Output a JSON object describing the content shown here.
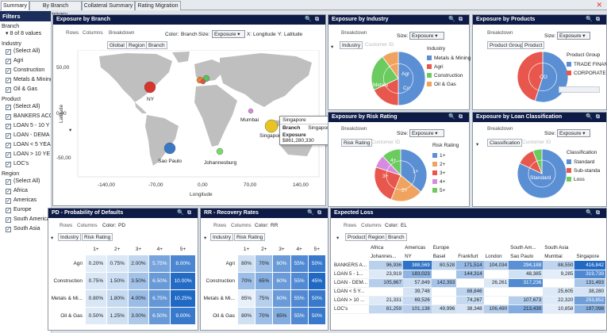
{
  "tabs": [
    "Summary",
    "By Branch Summary",
    "Collateral Summary",
    "Rating Migration"
  ],
  "filters": {
    "title": "Filters",
    "branch_label": "Branch",
    "branch_value": "8 of 8 values",
    "industry_label": "Industry",
    "industry_items": [
      "(Select All)",
      "Agri",
      "Construction",
      "Metals & Mining",
      "Oil & Gas"
    ],
    "product_label": "Product",
    "product_items": [
      "(Select All)",
      "BANKERS ACC",
      "LOAN  5 - 10 Y",
      "LOAN - DEMA",
      "LOAN < 5 YEA",
      "LOAN > 10 YE",
      "LOC's"
    ],
    "region_label": "Region",
    "region_items": [
      "(Select All)",
      "Africa",
      "Americas",
      "Europe",
      "South America",
      "South Asia"
    ]
  },
  "branch": {
    "title": "Exposure by Branch",
    "rows": "Rows",
    "columns": "Columns",
    "breakdown": "Breakdown",
    "color_label": "Color:",
    "color_value": "Branch",
    "size_label": "Size:",
    "size_value": "Exposure",
    "x_label": "X:",
    "x_value": "Longitude",
    "y_label": "Y:",
    "y_value": "Latitude",
    "chips": [
      "Global",
      "Region",
      "Branch"
    ],
    "y_ticks": [
      "50,00",
      "0,00",
      "-50,00"
    ],
    "x_ticks": [
      "-140,00",
      "-70,00",
      "0,00",
      "70,00",
      "140,00"
    ],
    "x_axis": "Longitude",
    "y_axis": "Latitude",
    "cities": [
      "NY",
      "Sao Paulo",
      "Johannesburg",
      "Mumbai",
      "Singapore"
    ],
    "tooltip": {
      "title": "Singapore",
      "branch_label": "Branch",
      "branch_value": "Singapore",
      "exposure_label": "Exposure",
      "exposure_value": "$861,280,330"
    }
  },
  "industry": {
    "title": "Exposure by Industry",
    "breakdown": "Breakdown",
    "size_label": "Size:",
    "size_value": "Exposure",
    "chips": [
      "Industry"
    ],
    "ghost": "Customer ID",
    "legend_title": "Industry",
    "legend": [
      {
        "name": "Metals & Mining",
        "color": "#5b8fd4"
      },
      {
        "name": "Agri",
        "color": "#e8574d"
      },
      {
        "name": "Construction",
        "color": "#6bcb5f"
      },
      {
        "name": "Oil & Gas",
        "color": "#f0a35e"
      }
    ],
    "slice_labels": [
      "Metals",
      "Agr",
      "Co"
    ]
  },
  "products": {
    "title": "Exposure by Products",
    "breakdown": "Breakdown",
    "size_label": "Size:",
    "size_value": "Exposure",
    "chips": [
      "Product Group",
      "Product"
    ],
    "legend_title": "Product Group",
    "legend": [
      {
        "name": "TRADE FINAN",
        "color": "#5b8fd4"
      },
      {
        "name": "CORPORATE L",
        "color": "#e8574d"
      }
    ],
    "slice_labels": [
      "CO"
    ]
  },
  "risk": {
    "title": "Exposure by Risk Rating",
    "breakdown": "Breakdown",
    "size_label": "Size:",
    "size_value": "Exposure",
    "chips": [
      "Risk Rating"
    ],
    "ghost": "Customer ID",
    "legend_title": "Risk Rating",
    "legend": [
      {
        "name": "1+",
        "color": "#5b8fd4"
      },
      {
        "name": "2+",
        "color": "#f0a35e"
      },
      {
        "name": "3+",
        "color": "#e8574d"
      },
      {
        "name": "4+",
        "color": "#d78be0"
      },
      {
        "name": "5+",
        "color": "#6bcb5f"
      }
    ],
    "slice_labels": [
      "1+",
      "2+",
      "3+",
      "4+"
    ]
  },
  "loan": {
    "title": "Exposure by Loan Classification",
    "breakdown": "Breakdown",
    "size_label": "Size:",
    "size_value": "Exposure",
    "chips": [
      "Classification"
    ],
    "ghost": "Customer ID",
    "legend_title": "Classification",
    "legend": [
      {
        "name": "Standard",
        "color": "#5b8fd4"
      },
      {
        "name": "Sub-standa",
        "color": "#e8574d"
      },
      {
        "name": "Loss",
        "color": "#6bcb5f"
      }
    ],
    "slice_labels": [
      "Standard"
    ]
  },
  "pd": {
    "title": "PD - Probability of Defaults",
    "rows": "Rows",
    "columns": "Columns",
    "color_label": "Color:",
    "color_value": "PD",
    "chips": [
      "Industry",
      "Risk Rating"
    ],
    "cols": [
      "1+",
      "2+",
      "3+",
      "4+",
      "5+"
    ],
    "rows_data": [
      {
        "label": "Agri",
        "cells": [
          "0.20%",
          "0.75%",
          "2.00%",
          "5.75%",
          "8.00%"
        ]
      },
      {
        "label": "Construction",
        "cells": [
          "0.75%",
          "1.50%",
          "3.50%",
          "6.50%",
          "10.00%"
        ]
      },
      {
        "label": "Metals & Mi...",
        "cells": [
          "0.80%",
          "1.80%",
          "4.00%",
          "6.75%",
          "10.25%"
        ]
      },
      {
        "label": "Oil & Gas",
        "cells": [
          "0.50%",
          "1.25%",
          "3.00%",
          "6.50%",
          "9.00%"
        ]
      }
    ]
  },
  "rr": {
    "title": "RR - Recovery Rates",
    "rows": "Rows",
    "columns": "Columns",
    "color_label": "Color:",
    "color_value": "RR",
    "chips": [
      "Industry",
      "Risk Rating"
    ],
    "cols": [
      "1+",
      "2+",
      "3+",
      "4+",
      "5+"
    ],
    "rows_data": [
      {
        "label": "Agri",
        "cells": [
          "80%",
          "70%",
          "60%",
          "55%",
          "50%"
        ]
      },
      {
        "label": "Construction",
        "cells": [
          "70%",
          "65%",
          "60%",
          "55%",
          "45%"
        ]
      },
      {
        "label": "Metals & Mi...",
        "cells": [
          "85%",
          "75%",
          "60%",
          "55%",
          "50%"
        ]
      },
      {
        "label": "Oil & Gas",
        "cells": [
          "80%",
          "70%",
          "65%",
          "55%",
          "50%"
        ]
      }
    ]
  },
  "el": {
    "title": "Expected Loss",
    "rows": "Rows",
    "columns": "Columns",
    "color_label": "Color:",
    "color_value": "EL",
    "chips": [
      "Product",
      "Region",
      "Branch"
    ],
    "regions": [
      "Africa",
      "Americas",
      "Europe",
      "",
      "",
      "South Am...",
      "South Asia",
      ""
    ],
    "branches": [
      "Johannes...",
      "NY",
      "Basel",
      "Frankfurt",
      "London",
      "Sao Paulo",
      "Mumbai",
      "Singapore"
    ],
    "rows_data": [
      {
        "label": "BANKERS A...",
        "cells": [
          "96,936",
          "388,569",
          "80,528",
          "171,514",
          "104,034",
          "294,188",
          "88,550",
          "416,842"
        ]
      },
      {
        "label": "LOAN  5 - 1...",
        "cells": [
          "23,919",
          "183,023",
          "",
          "144,314",
          "",
          "48,385",
          "9,285",
          "319,739"
        ]
      },
      {
        "label": "LOAN - DEM...",
        "cells": [
          "105,867",
          "57,849",
          "142,393",
          "",
          "26,261",
          "317,236",
          "",
          "131,493"
        ]
      },
      {
        "label": "LOAN < 5 Y...",
        "cells": [
          "",
          "39,748",
          "",
          "88,846",
          "",
          "",
          "25,605",
          "38,280"
        ]
      },
      {
        "label": "LOAN > 10 ...",
        "cells": [
          "21,331",
          "69,526",
          "",
          "74,267",
          "",
          "107,673",
          "22,320",
          "253,852"
        ]
      },
      {
        "label": "LOC's",
        "cells": [
          "81,259",
          "101,138",
          "49,996",
          "38,348",
          "106,490",
          "213,430",
          "10,858",
          "197,098"
        ]
      }
    ]
  }
}
